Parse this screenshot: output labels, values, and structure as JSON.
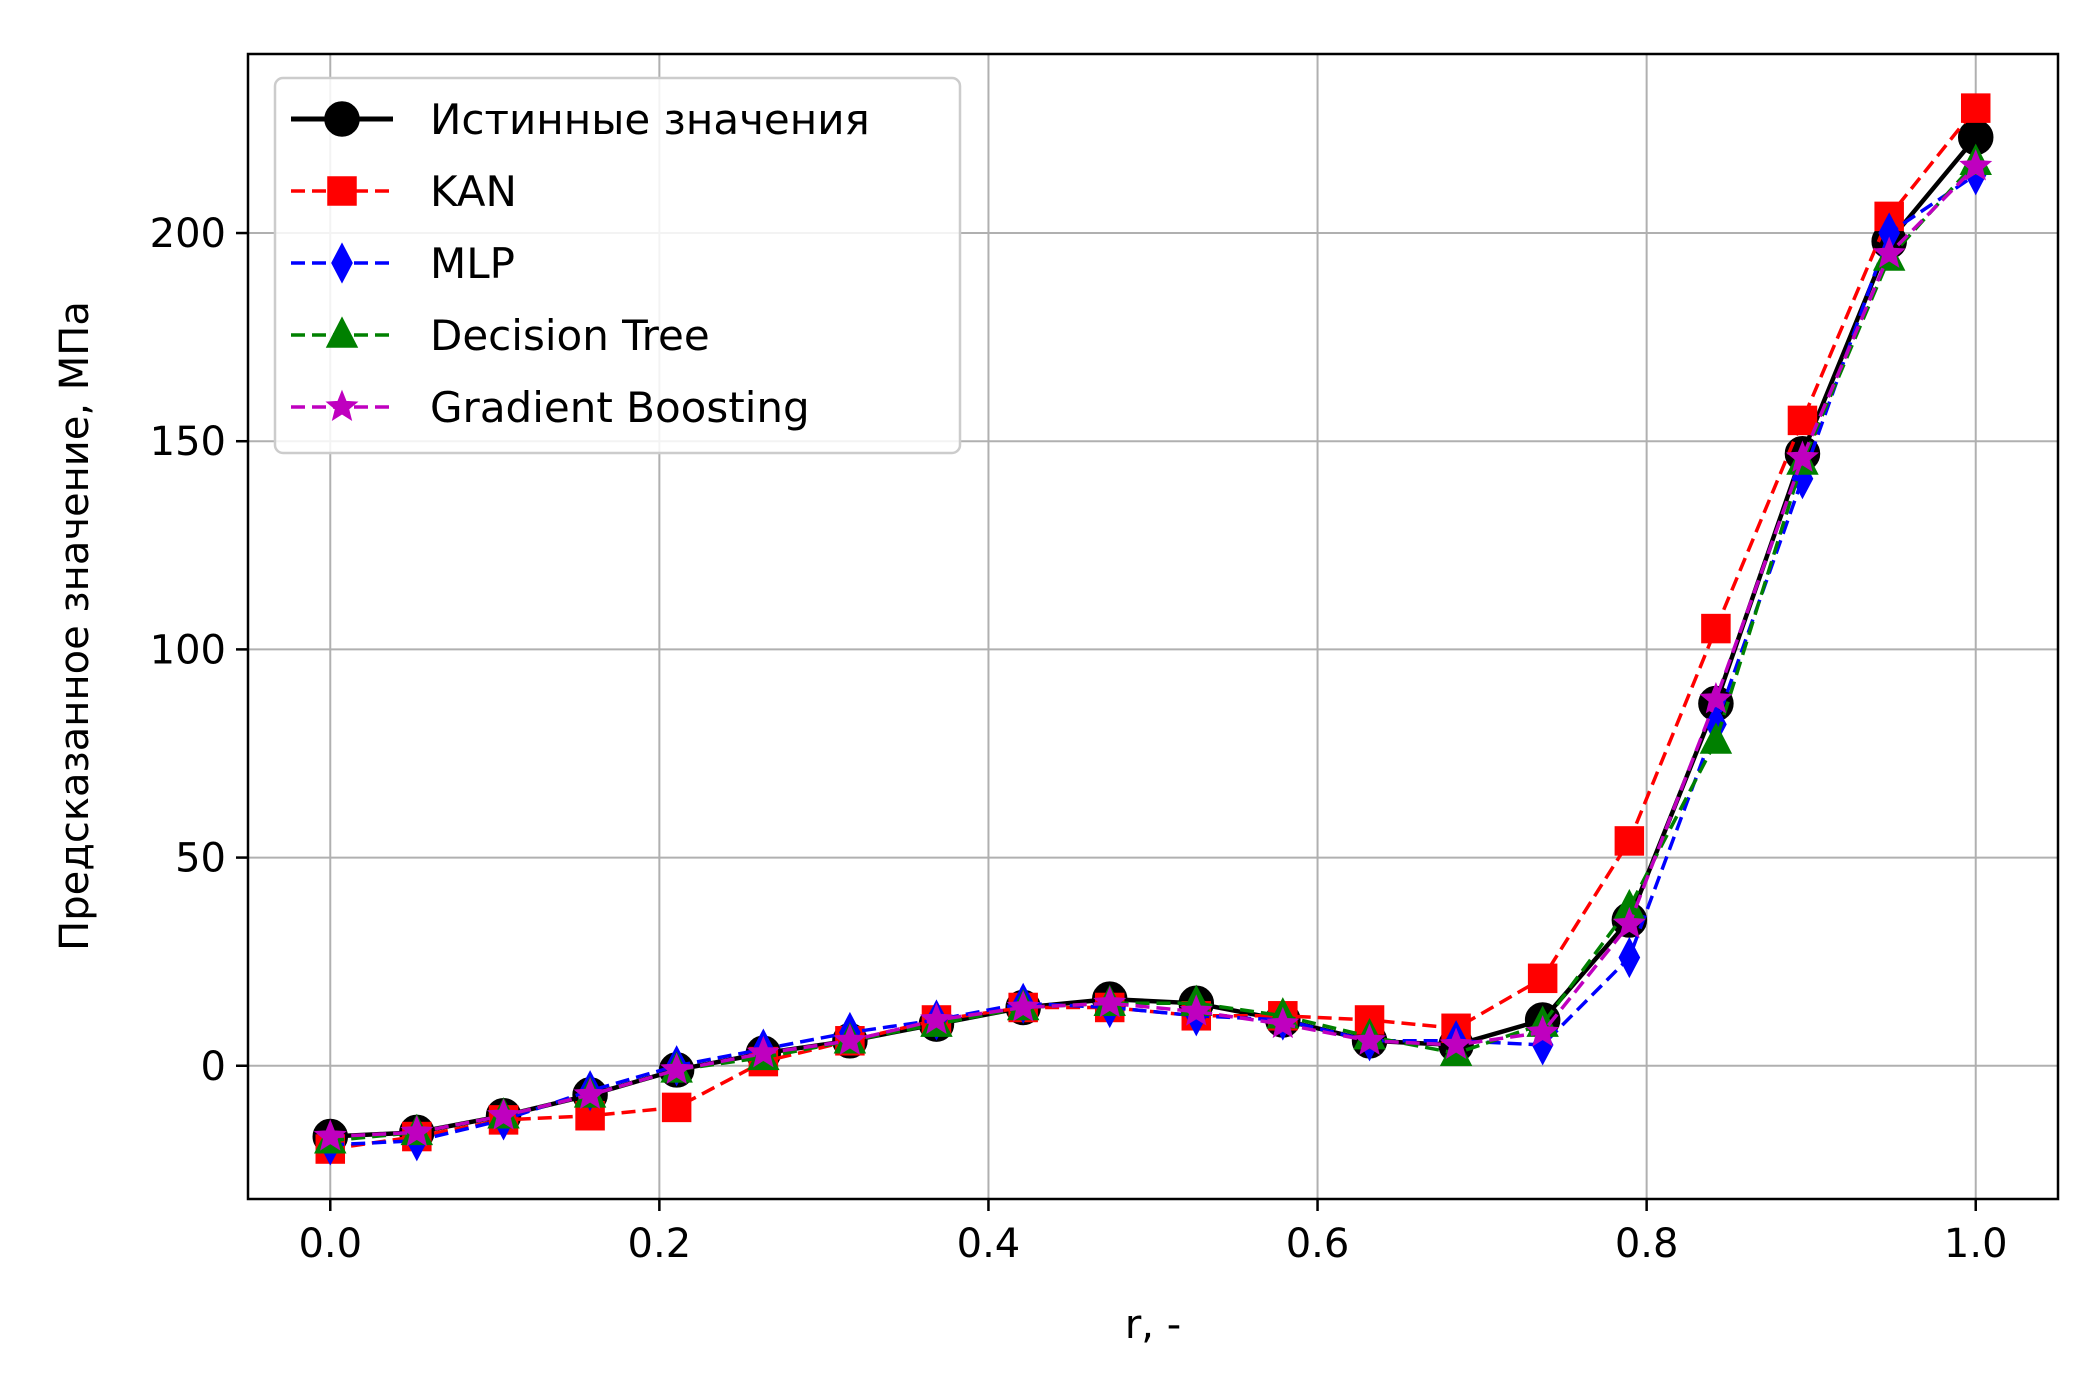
{
  "chart_data": {
    "type": "line",
    "xlabel": "r, -",
    "ylabel": "Предсказанное значение, МПа",
    "xlim": [
      -0.05,
      1.05
    ],
    "ylim": [
      -32,
      243
    ],
    "xticks": [
      0.0,
      0.2,
      0.4,
      0.6,
      0.8,
      1.0
    ],
    "xtick_labels": [
      "0.0",
      "0.2",
      "0.4",
      "0.6",
      "0.8",
      "1.0"
    ],
    "yticks": [
      0,
      50,
      100,
      150,
      200
    ],
    "ytick_labels": [
      "0",
      "50",
      "100",
      "150",
      "200"
    ],
    "grid": true,
    "legend_position": "top-left",
    "x": [
      0.0,
      0.0526,
      0.1053,
      0.1579,
      0.2105,
      0.2632,
      0.3158,
      0.3684,
      0.4211,
      0.4737,
      0.5263,
      0.5789,
      0.6316,
      0.6842,
      0.7368,
      0.7895,
      0.8421,
      0.8947,
      0.9474,
      1.0
    ],
    "series": [
      {
        "name": "Истинные значения",
        "color": "#000000",
        "marker": "circle",
        "line": "solid",
        "values": [
          -17,
          -16,
          -12,
          -7,
          -1,
          3,
          6,
          10,
          14,
          16,
          15,
          11,
          6,
          5,
          11,
          35,
          87,
          147,
          198,
          223
        ]
      },
      {
        "name": "KAN",
        "color": "#ff0000",
        "marker": "square",
        "line": "dashed",
        "values": [
          -20,
          -17,
          -13,
          -12,
          -10,
          1,
          6,
          11,
          14,
          14,
          12,
          12,
          11,
          9,
          21,
          54,
          105,
          155,
          204,
          230
        ]
      },
      {
        "name": "MLP",
        "color": "#0000ff",
        "marker": "thin-diamond",
        "line": "dashed",
        "values": [
          -19,
          -18,
          -13,
          -6,
          0,
          4,
          8,
          11,
          15,
          14,
          12,
          11,
          6,
          6,
          5,
          26,
          82,
          141,
          200,
          214
        ]
      },
      {
        "name": "Decision Tree",
        "color": "#008000",
        "marker": "triangle",
        "line": "dashed",
        "values": [
          -18,
          -16,
          -12,
          -7,
          -1,
          2,
          6,
          10,
          14,
          15,
          15,
          12,
          7,
          3,
          10,
          38,
          78,
          145,
          194,
          217
        ]
      },
      {
        "name": "Gradient Boosting",
        "color": "#bf00bf",
        "marker": "star",
        "line": "dashed",
        "values": [
          -17,
          -16,
          -12,
          -7,
          -1,
          3,
          6,
          11,
          14,
          15,
          13,
          10,
          6,
          5,
          8,
          34,
          88,
          146,
          195,
          216
        ]
      }
    ]
  }
}
